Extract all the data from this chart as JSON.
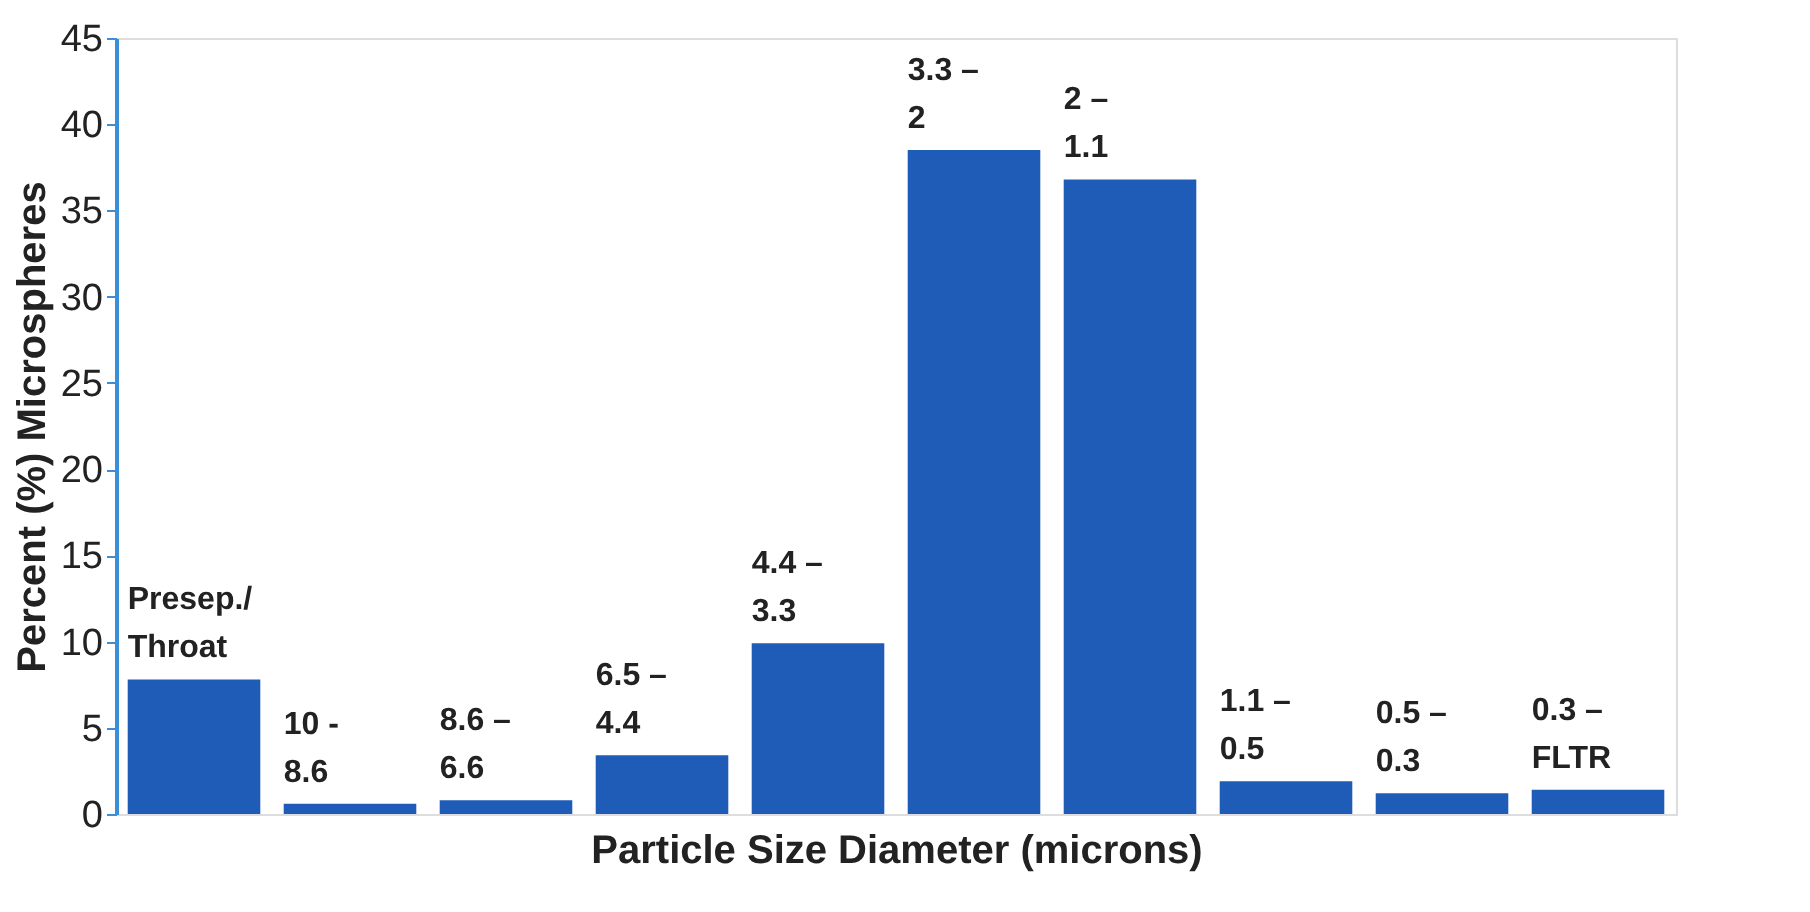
{
  "chart_data": {
    "type": "bar",
    "categories": [
      "Presep./\nThroat",
      "10 -\n8.6",
      "8.6 –\n6.6",
      "6.5 –\n4.4",
      "4.4 –\n3.3",
      "3.3 –\n2",
      "2 –\n1.1",
      "1.1 –\n0.5",
      "0.5 –\n0.3",
      "0.3 –\nFLTR"
    ],
    "values": [
      7.8,
      0.6,
      0.8,
      3.4,
      9.9,
      38.5,
      36.8,
      1.9,
      1.2,
      1.4
    ],
    "color": "#1f5cb8",
    "xlabel": "Particle Size Diameter (microns)",
    "ylabel": "Percent (%) Microspheres",
    "ylim": [
      0,
      45
    ],
    "yticks": [
      0,
      5,
      10,
      15,
      20,
      25,
      30,
      35,
      40,
      45
    ],
    "grid": false,
    "tick_labels": "y"
  }
}
